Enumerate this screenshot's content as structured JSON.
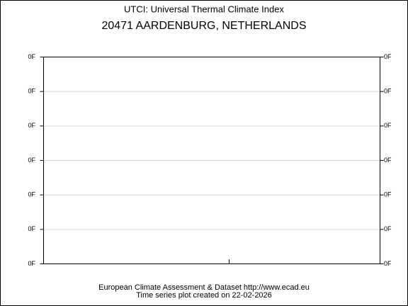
{
  "chart_data": {
    "type": "line",
    "title": "UTCI: Universal Thermal Climate Index",
    "subtitle": "20471 AARDENBURG, NETHERLANDS",
    "ylim": [
      0,
      0.3
    ],
    "yticks": [
      {
        "value": 0,
        "label": "0F"
      },
      {
        "value": 0.05,
        "label": "0F"
      },
      {
        "value": 0.1,
        "label": "0F"
      },
      {
        "value": 0.15,
        "label": "0F"
      },
      {
        "value": 0.2,
        "label": "0F"
      },
      {
        "value": 0.25,
        "label": "0F"
      },
      {
        "value": 0.3,
        "label": "0F"
      }
    ],
    "grid": true,
    "source": "European Climate Assessment & Dataset  http://www.ecad.eu",
    "note": "Time series plot created on 22-02-2026"
  }
}
